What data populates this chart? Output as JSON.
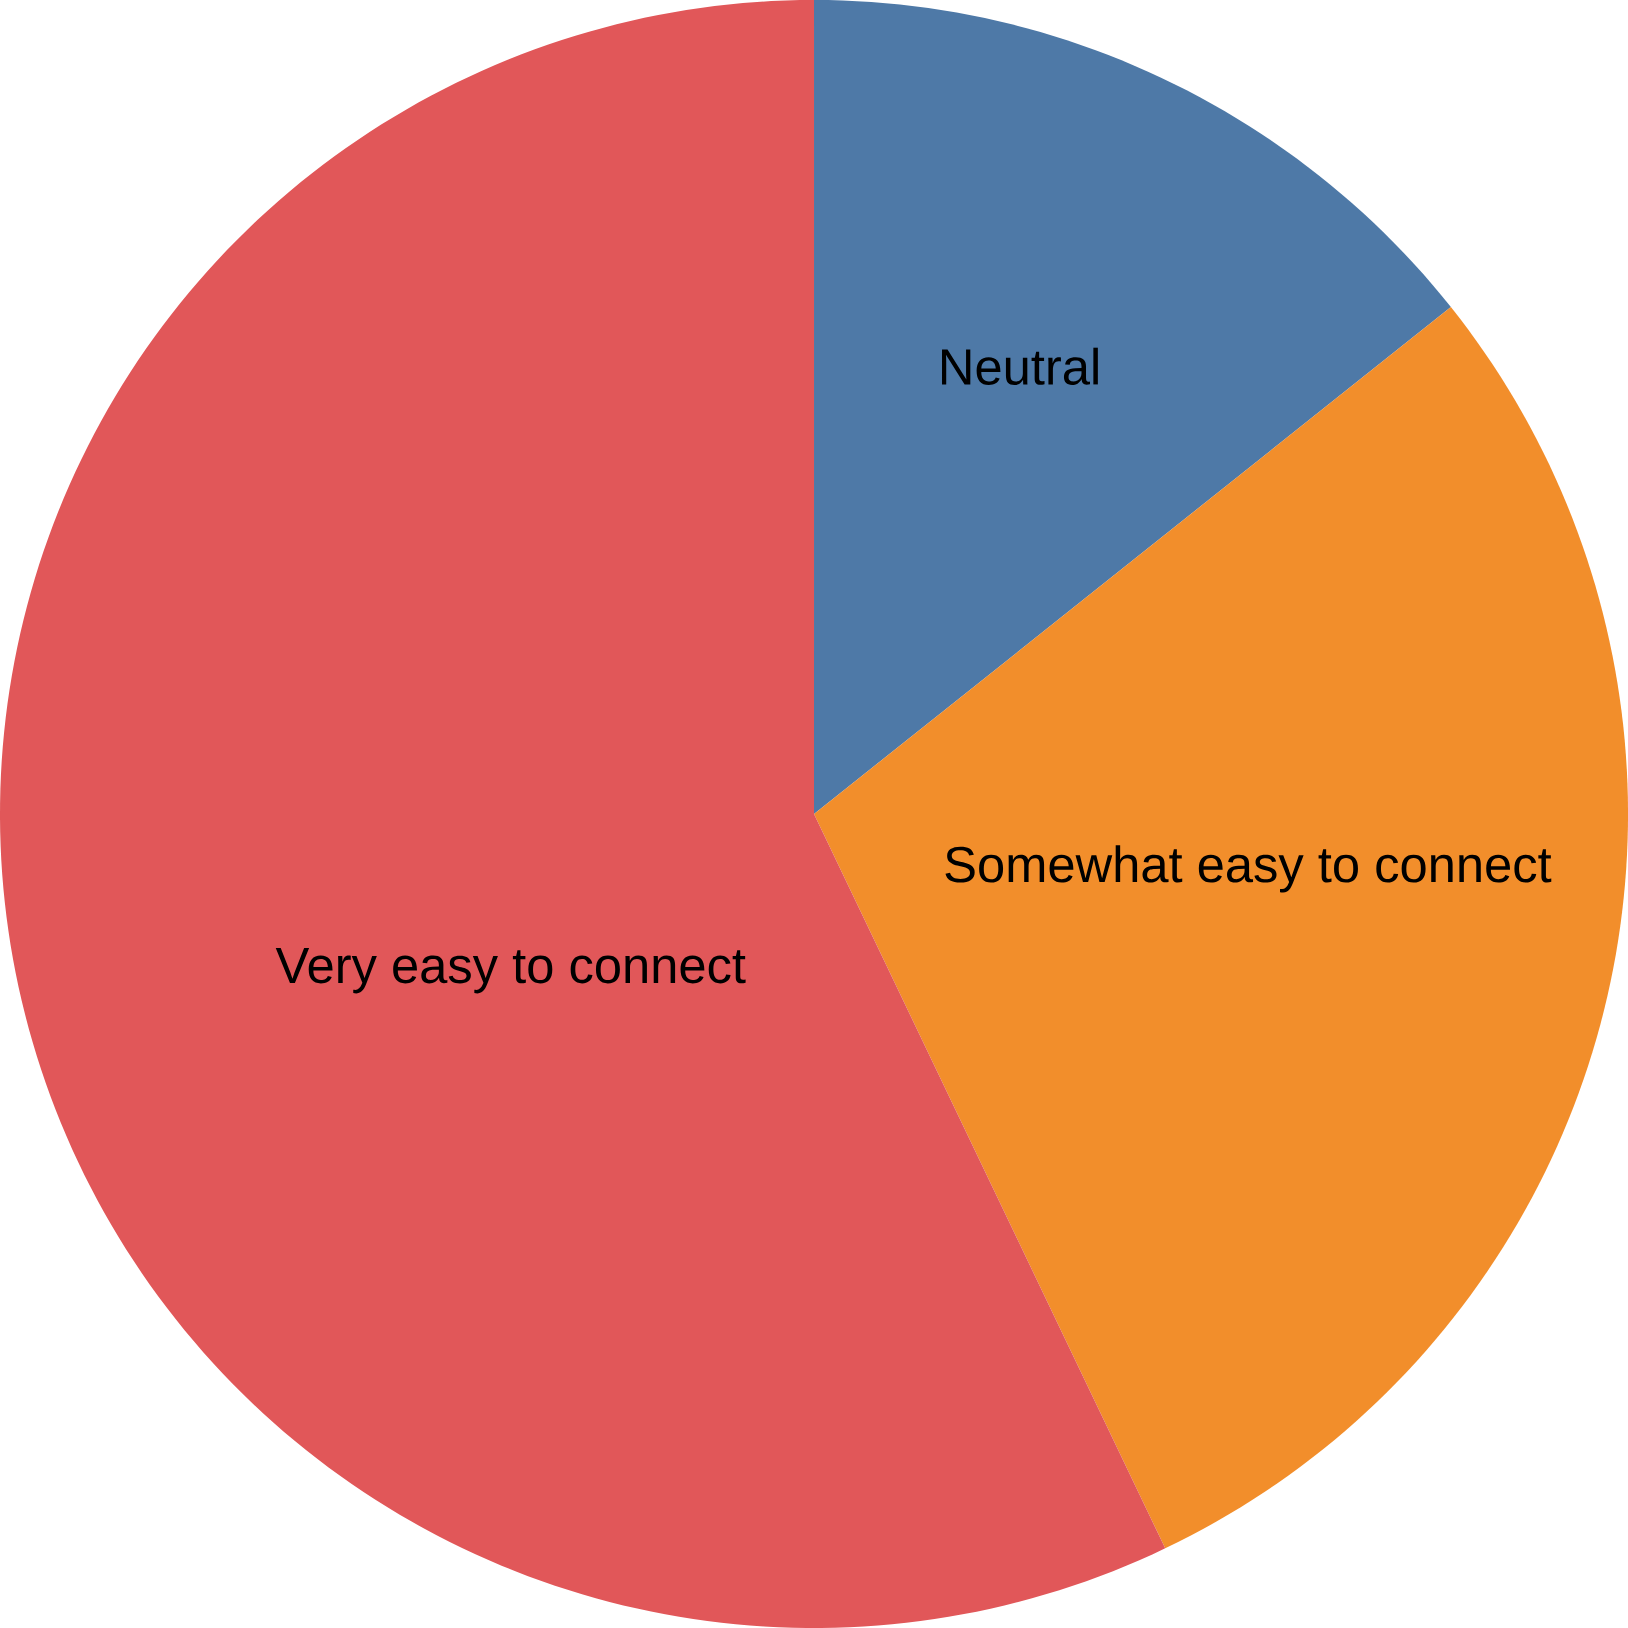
{
  "chart_data": {
    "type": "pie",
    "categories": [
      "Neutral",
      "Somewhat easy to connect",
      "Very easy to connect"
    ],
    "values": [
      14.3,
      28.6,
      57.1
    ],
    "colors": [
      "#4e79a7",
      "#f28e2b",
      "#e15759"
    ]
  }
}
